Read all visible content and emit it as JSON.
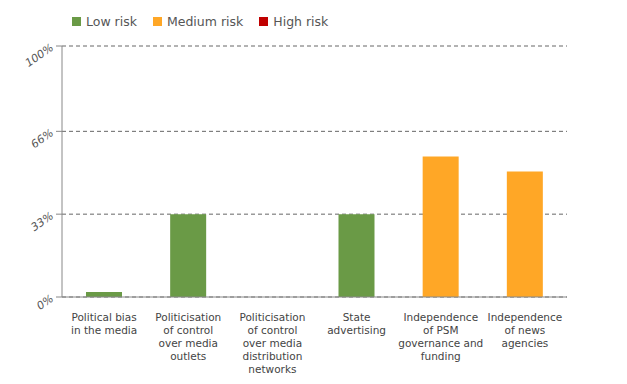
{
  "chart_data": {
    "type": "bar",
    "stacked": true,
    "categories": [
      "Political bias in the media",
      "Politicisation of control over media outlets",
      "Politicisation of control over media distribution networks",
      "State advertising",
      "Independence of PSM governance and funding",
      "Independence of news agencies"
    ],
    "series": [
      {
        "name": "Low risk",
        "color": "#6a9a46",
        "values": [
          2,
          33,
          0,
          33,
          null,
          null
        ]
      },
      {
        "name": "Medium risk",
        "color": "#ffa726",
        "values": [
          null,
          null,
          null,
          null,
          56,
          50
        ]
      },
      {
        "name": "High risk",
        "color": "#c00000",
        "values": [
          null,
          null,
          null,
          null,
          null,
          null
        ]
      }
    ],
    "ylim": [
      0,
      100
    ],
    "yticks": [
      {
        "value": 0,
        "label": "0%"
      },
      {
        "value": 33,
        "label": "33%"
      },
      {
        "value": 66,
        "label": "66%"
      },
      {
        "value": 100,
        "label": "100%"
      }
    ],
    "grid": true,
    "legend": "top left"
  }
}
